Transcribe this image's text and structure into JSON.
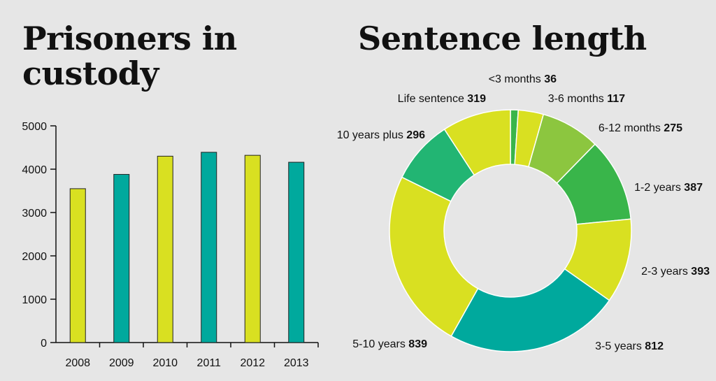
{
  "colors": {
    "background": "#e6e6e6",
    "lime": "#d9e021",
    "teal": "#00a99d",
    "green_light": "#8cc63f",
    "green": "#39b54a",
    "green_mid": "#22b573",
    "dark_green": "#009245",
    "text": "#111111"
  },
  "chart_data": [
    {
      "type": "bar",
      "title": "Prisoners in custody",
      "categories": [
        "2008",
        "2009",
        "2010",
        "2011",
        "2012",
        "2013"
      ],
      "values": [
        3550,
        3880,
        4300,
        4390,
        4320,
        4160
      ],
      "bar_colors": [
        "#d9e021",
        "#00a99d",
        "#d9e021",
        "#00a99d",
        "#d9e021",
        "#00a99d"
      ],
      "ylim": [
        0,
        5000
      ],
      "yticks": [
        0,
        1000,
        2000,
        3000,
        4000,
        5000
      ],
      "xlabel": "",
      "ylabel": "",
      "grid": false,
      "legend": "none"
    },
    {
      "type": "pie",
      "title": "Sentence length",
      "donut": true,
      "slices": [
        {
          "label": "<3 months",
          "value": 36,
          "color": "#39b54a"
        },
        {
          "label": "3-6 months",
          "value": 117,
          "color": "#d9e021"
        },
        {
          "label": "6-12 months",
          "value": 275,
          "color": "#8cc63f"
        },
        {
          "label": "1-2 years",
          "value": 387,
          "color": "#39b54a"
        },
        {
          "label": "2-3 years",
          "value": 393,
          "color": "#d9e021"
        },
        {
          "label": "3-5 years",
          "value": 812,
          "color": "#00a99d"
        },
        {
          "label": "5-10 years",
          "value": 839,
          "color": "#d9e021"
        },
        {
          "label": "10 years plus",
          "value": 296,
          "color": "#22b573"
        },
        {
          "label": "Life sentence",
          "value": 319,
          "color": "#d9e021"
        }
      ],
      "grid": false,
      "legend": "none"
    }
  ]
}
